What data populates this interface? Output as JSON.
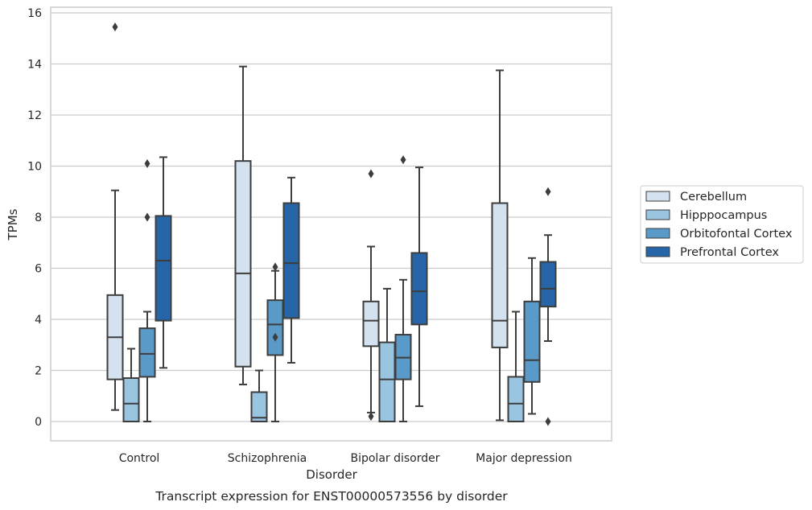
{
  "chart_data": {
    "type": "box",
    "xlabel": "Disorder",
    "ylabel": "TPMs",
    "caption": "Transcript expression for ENST00000573556 by disorder",
    "ylim": [
      -0.75,
      16.25
    ],
    "yticks": [
      "0",
      "2",
      "4",
      "6",
      "8",
      "10",
      "12",
      "14",
      "16"
    ],
    "grid": true,
    "legend_position": "right",
    "categories": [
      "Control",
      "Schizophrenia",
      "Bipolar disorder",
      "Major depression"
    ],
    "series": [
      {
        "name": "Cerebellum",
        "color": "#d4e2f0",
        "boxes": [
          {
            "whisker_low": 0.45,
            "q1": 1.65,
            "median": 3.3,
            "q3": 4.95,
            "whisker_high": 9.05,
            "outliers": [
              15.45
            ]
          },
          {
            "whisker_low": 1.45,
            "q1": 2.15,
            "median": 5.8,
            "q3": 10.2,
            "whisker_high": 13.9,
            "outliers": []
          },
          {
            "whisker_low": 0.35,
            "q1": 2.95,
            "median": 3.95,
            "q3": 4.7,
            "whisker_high": 6.85,
            "outliers": [
              9.7,
              0.2
            ]
          },
          {
            "whisker_low": 0.05,
            "q1": 2.9,
            "median": 3.95,
            "q3": 8.55,
            "whisker_high": 13.75,
            "outliers": []
          }
        ]
      },
      {
        "name": "Hipppocampus",
        "color": "#9ac5e0",
        "boxes": [
          {
            "whisker_low": 0.0,
            "q1": 0.0,
            "median": 0.7,
            "q3": 1.7,
            "whisker_high": 2.85,
            "outliers": []
          },
          {
            "whisker_low": 0.0,
            "q1": 0.0,
            "median": 0.15,
            "q3": 1.15,
            "whisker_high": 2.0,
            "outliers": []
          },
          {
            "whisker_low": 0.0,
            "q1": 0.0,
            "median": 1.65,
            "q3": 3.1,
            "whisker_high": 5.2,
            "outliers": []
          },
          {
            "whisker_low": 0.0,
            "q1": 0.0,
            "median": 0.7,
            "q3": 1.75,
            "whisker_high": 4.3,
            "outliers": []
          }
        ]
      },
      {
        "name": "Orbitofontal Cortex",
        "color": "#5a9ac8",
        "boxes": [
          {
            "whisker_low": 0.0,
            "q1": 1.75,
            "median": 2.65,
            "q3": 3.65,
            "whisker_high": 4.3,
            "outliers": [
              10.1,
              8.0
            ]
          },
          {
            "whisker_low": 0.0,
            "q1": 2.6,
            "median": 3.8,
            "q3": 4.75,
            "whisker_high": 5.9,
            "outliers": [
              6.05,
              3.3
            ]
          },
          {
            "whisker_low": 0.0,
            "q1": 1.65,
            "median": 2.5,
            "q3": 3.4,
            "whisker_high": 5.55,
            "outliers": [
              10.25
            ]
          },
          {
            "whisker_low": 0.3,
            "q1": 1.55,
            "median": 2.4,
            "q3": 4.7,
            "whisker_high": 6.4,
            "outliers": []
          }
        ]
      },
      {
        "name": "Prefrontal Cortex",
        "color": "#2666a8",
        "boxes": [
          {
            "whisker_low": 2.1,
            "q1": 3.95,
            "median": 6.3,
            "q3": 8.05,
            "whisker_high": 10.35,
            "outliers": []
          },
          {
            "whisker_low": 2.3,
            "q1": 4.05,
            "median": 6.2,
            "q3": 8.55,
            "whisker_high": 9.55,
            "outliers": []
          },
          {
            "whisker_low": 0.6,
            "q1": 3.8,
            "median": 5.1,
            "q3": 6.6,
            "whisker_high": 9.95,
            "outliers": []
          },
          {
            "whisker_low": 3.15,
            "q1": 4.5,
            "median": 5.2,
            "q3": 6.25,
            "whisker_high": 7.3,
            "outliers": [
              9.0,
              0.0
            ]
          }
        ]
      }
    ]
  }
}
